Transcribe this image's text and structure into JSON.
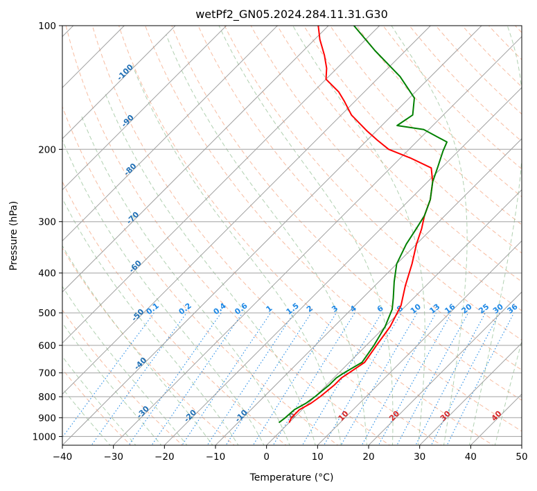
{
  "chart_data": {
    "type": "line",
    "title": "wetPf2_GN05.2024.284.11.31.G30",
    "xlabel": "Temperature (°C)",
    "ylabel": "Pressure (hPa)",
    "xlim": [
      -40,
      50
    ],
    "ylim": [
      1050,
      100
    ],
    "y_scale": "log",
    "grid": true,
    "x_ticks": [
      -40,
      -30,
      -20,
      -10,
      0,
      10,
      20,
      30,
      40,
      50
    ],
    "y_ticks": [
      100,
      200,
      300,
      400,
      500,
      600,
      700,
      800,
      900,
      1000
    ],
    "colors": {
      "temperature": "#ff0000",
      "dewpoint": "#008000",
      "dry_adiabats": "#f4a582",
      "moist_adiabats": "#8fbc8f",
      "mixing_ratio": "#1e88e5",
      "isotherms": "#a0a0a0",
      "isotherm_labels": "#1f6fb5",
      "warm_labels": "#d62728",
      "zero_label": "#808080",
      "mr_labels": "#1e88e5"
    },
    "series": [
      {
        "key": "temperature",
        "points": [
          [
            0,
            925
          ],
          [
            -0.5,
            900
          ],
          [
            -0.5,
            860
          ],
          [
            0.5,
            830
          ],
          [
            1,
            800
          ],
          [
            1.5,
            750
          ],
          [
            1.5,
            720
          ],
          [
            2,
            700
          ],
          [
            3,
            660
          ],
          [
            2,
            600
          ],
          [
            1,
            540
          ],
          [
            -1,
            480
          ],
          [
            -4,
            430
          ],
          [
            -7,
            380
          ],
          [
            -10,
            340
          ],
          [
            -12,
            312
          ],
          [
            -14,
            290
          ],
          [
            -16,
            265
          ],
          [
            -19,
            240
          ],
          [
            -22,
            222
          ],
          [
            -28,
            210
          ],
          [
            -34,
            200
          ],
          [
            -38,
            190
          ],
          [
            -42,
            180
          ],
          [
            -48,
            165
          ],
          [
            -52,
            153
          ],
          [
            -55,
            145
          ],
          [
            -60,
            135
          ],
          [
            -62,
            127
          ],
          [
            -65,
            118
          ],
          [
            -69,
            108
          ],
          [
            -72,
            100
          ]
        ]
      },
      {
        "key": "dewpoint",
        "points": [
          [
            -2,
            925
          ],
          [
            -1.7,
            900
          ],
          [
            -1.5,
            860
          ],
          [
            -0.5,
            830
          ],
          [
            0,
            800
          ],
          [
            0.5,
            750
          ],
          [
            0.5,
            720
          ],
          [
            1,
            700
          ],
          [
            2.5,
            660
          ],
          [
            1.5,
            600
          ],
          [
            0,
            540
          ],
          [
            -2,
            490
          ],
          [
            -4,
            460
          ],
          [
            -7,
            420
          ],
          [
            -10,
            380
          ],
          [
            -12,
            340
          ],
          [
            -13,
            313
          ],
          [
            -14,
            290
          ],
          [
            -16,
            265
          ],
          [
            -19,
            240
          ],
          [
            -21,
            220
          ],
          [
            -23,
            202
          ],
          [
            -24,
            192
          ],
          [
            -31,
            179
          ],
          [
            -37,
            175
          ],
          [
            -36,
            165
          ],
          [
            -39,
            150
          ],
          [
            -46,
            133
          ],
          [
            -56,
            115
          ],
          [
            -65,
            100
          ]
        ]
      }
    ],
    "isotherm_labels": [
      "-100",
      "-90",
      "-80",
      "-70",
      "-60",
      "-50",
      "-40",
      "-30",
      "-20",
      "-10",
      "0",
      "10",
      "20",
      "30",
      "40"
    ],
    "mixing_ratio_labels": [
      "0.1",
      "0.2",
      "0.4",
      "0.6",
      "1",
      "1.5",
      "2",
      "3",
      "4",
      "6",
      "8",
      "10",
      "13",
      "16",
      "20",
      "25",
      "30",
      "36"
    ]
  }
}
